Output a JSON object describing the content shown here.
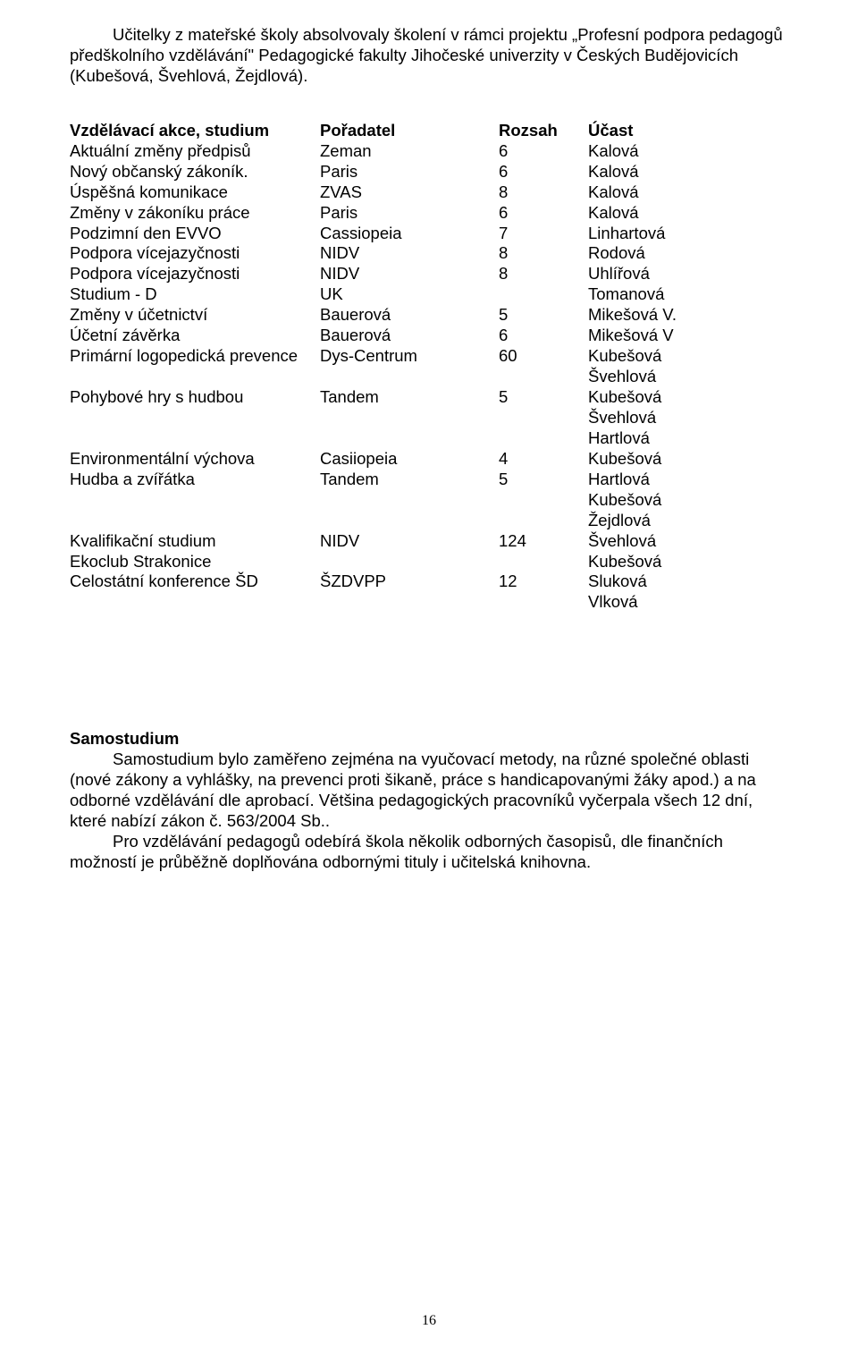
{
  "intro": {
    "text": "Učitelky z mateřské školy absolvovaly školení v rámci projektu „Profesní podpora pedagogů předškolního vzdělávání\" Pedagogické fakulty Jihočeské univerzity v Českých Budějovicích (Kubešová, Švehlová, Žejdlová)."
  },
  "tableHeader": {
    "c1": "Vzdělávací akce,  studium",
    "c2": "Pořadatel",
    "c3": "Rozsah",
    "c4": "Účast"
  },
  "rows": [
    {
      "c1": "Aktuální změny předpisů",
      "c2": "Zeman",
      "c3": "6",
      "c4": "Kalová"
    },
    {
      "c1": "Nový občanský zákoník.",
      "c2": "Paris",
      "c3": "6",
      "c4": "Kalová"
    },
    {
      "c1": "Úspěšná komunikace",
      "c2": "ZVAS",
      "c3": "8",
      "c4": "Kalová"
    },
    {
      "c1": "Změny v zákoníku práce",
      "c2": "Paris",
      "c3": "6",
      "c4": "Kalová"
    },
    {
      "c1": "Podzimní den EVVO",
      "c2": "Cassiopeia",
      "c3": "7",
      "c4": "Linhartová"
    },
    {
      "c1": "Podpora vícejazyčnosti",
      "c2": "NIDV",
      "c3": "8",
      "c4": "Rodová"
    },
    {
      "c1": "Podpora vícejazyčnosti",
      "c2": "NIDV",
      "c3": "8",
      "c4": "Uhlířová"
    },
    {
      "c1": "Studium - D",
      "c2": "UK",
      "c3": "",
      "c4": "Tomanová"
    },
    {
      "c1": "Změny v účetnictví",
      "c2": "Bauerová",
      "c3": "5",
      "c4": "Mikešová V."
    },
    {
      "c1": "Účetní závěrka",
      "c2": "Bauerová",
      "c3": "6",
      "c4": "Mikešová V"
    },
    {
      "c1": "Primární logopedická prevence",
      "c2": "Dys-Centrum",
      "c3": "60",
      "c4": "Kubešová"
    },
    {
      "c1": "",
      "c2": "",
      "c3": "",
      "c4": "Švehlová"
    },
    {
      "c1": "Pohybové hry s hudbou",
      "c2": "Tandem",
      "c3": "5",
      "c4": "Kubešová"
    },
    {
      "c1": "",
      "c2": "",
      "c3": "",
      "c4": "Švehlová"
    },
    {
      "c1": "",
      "c2": "",
      "c3": "",
      "c4": "Hartlová"
    },
    {
      "c1": "Environmentální výchova",
      "c2": "Casiiopeia",
      "c3": "4",
      "c4": "Kubešová"
    },
    {
      "c1": "Hudba a zvířátka",
      "c2": "Tandem",
      "c3": "5",
      "c4": "Hartlová"
    },
    {
      "c1": "",
      "c2": "",
      "c3": "",
      "c4": "Kubešová"
    },
    {
      "c1": "",
      "c2": "",
      "c3": "",
      "c4": "Žejdlová"
    },
    {
      "c1": "Kvalifikační studium",
      "c2": "NIDV",
      "c3": "124",
      "c4": "Švehlová"
    },
    {
      "c1": "Ekoclub Strakonice",
      "c2": "",
      "c3": "",
      "c4": "Kubešová"
    },
    {
      "c1": "Celostátní konference ŠD",
      "c2": "ŠZDVPP",
      "c3": "12",
      "c4": "Sluková"
    },
    {
      "c1": "",
      "c2": "",
      "c3": "",
      "c4": "Vlková"
    }
  ],
  "samostudium": {
    "heading": "Samostudium",
    "p1": "Samostudium bylo zaměřeno zejména na vyučovací metody, na různé společné oblasti (nové zákony a vyhlášky, na prevenci proti šikaně, práce s handicapovanými žáky apod.) a na odborné vzdělávání dle aprobací. Většina pedagogických pracovníků vyčerpala všech 12 dní, které nabízí zákon č. 563/2004 Sb..",
    "p2": "Pro vzdělávání pedagogů odebírá škola několik odborných časopisů, dle finančních možností je průběžně doplňována odbornými tituly i učitelská knihovna."
  },
  "pageNumber": "16"
}
